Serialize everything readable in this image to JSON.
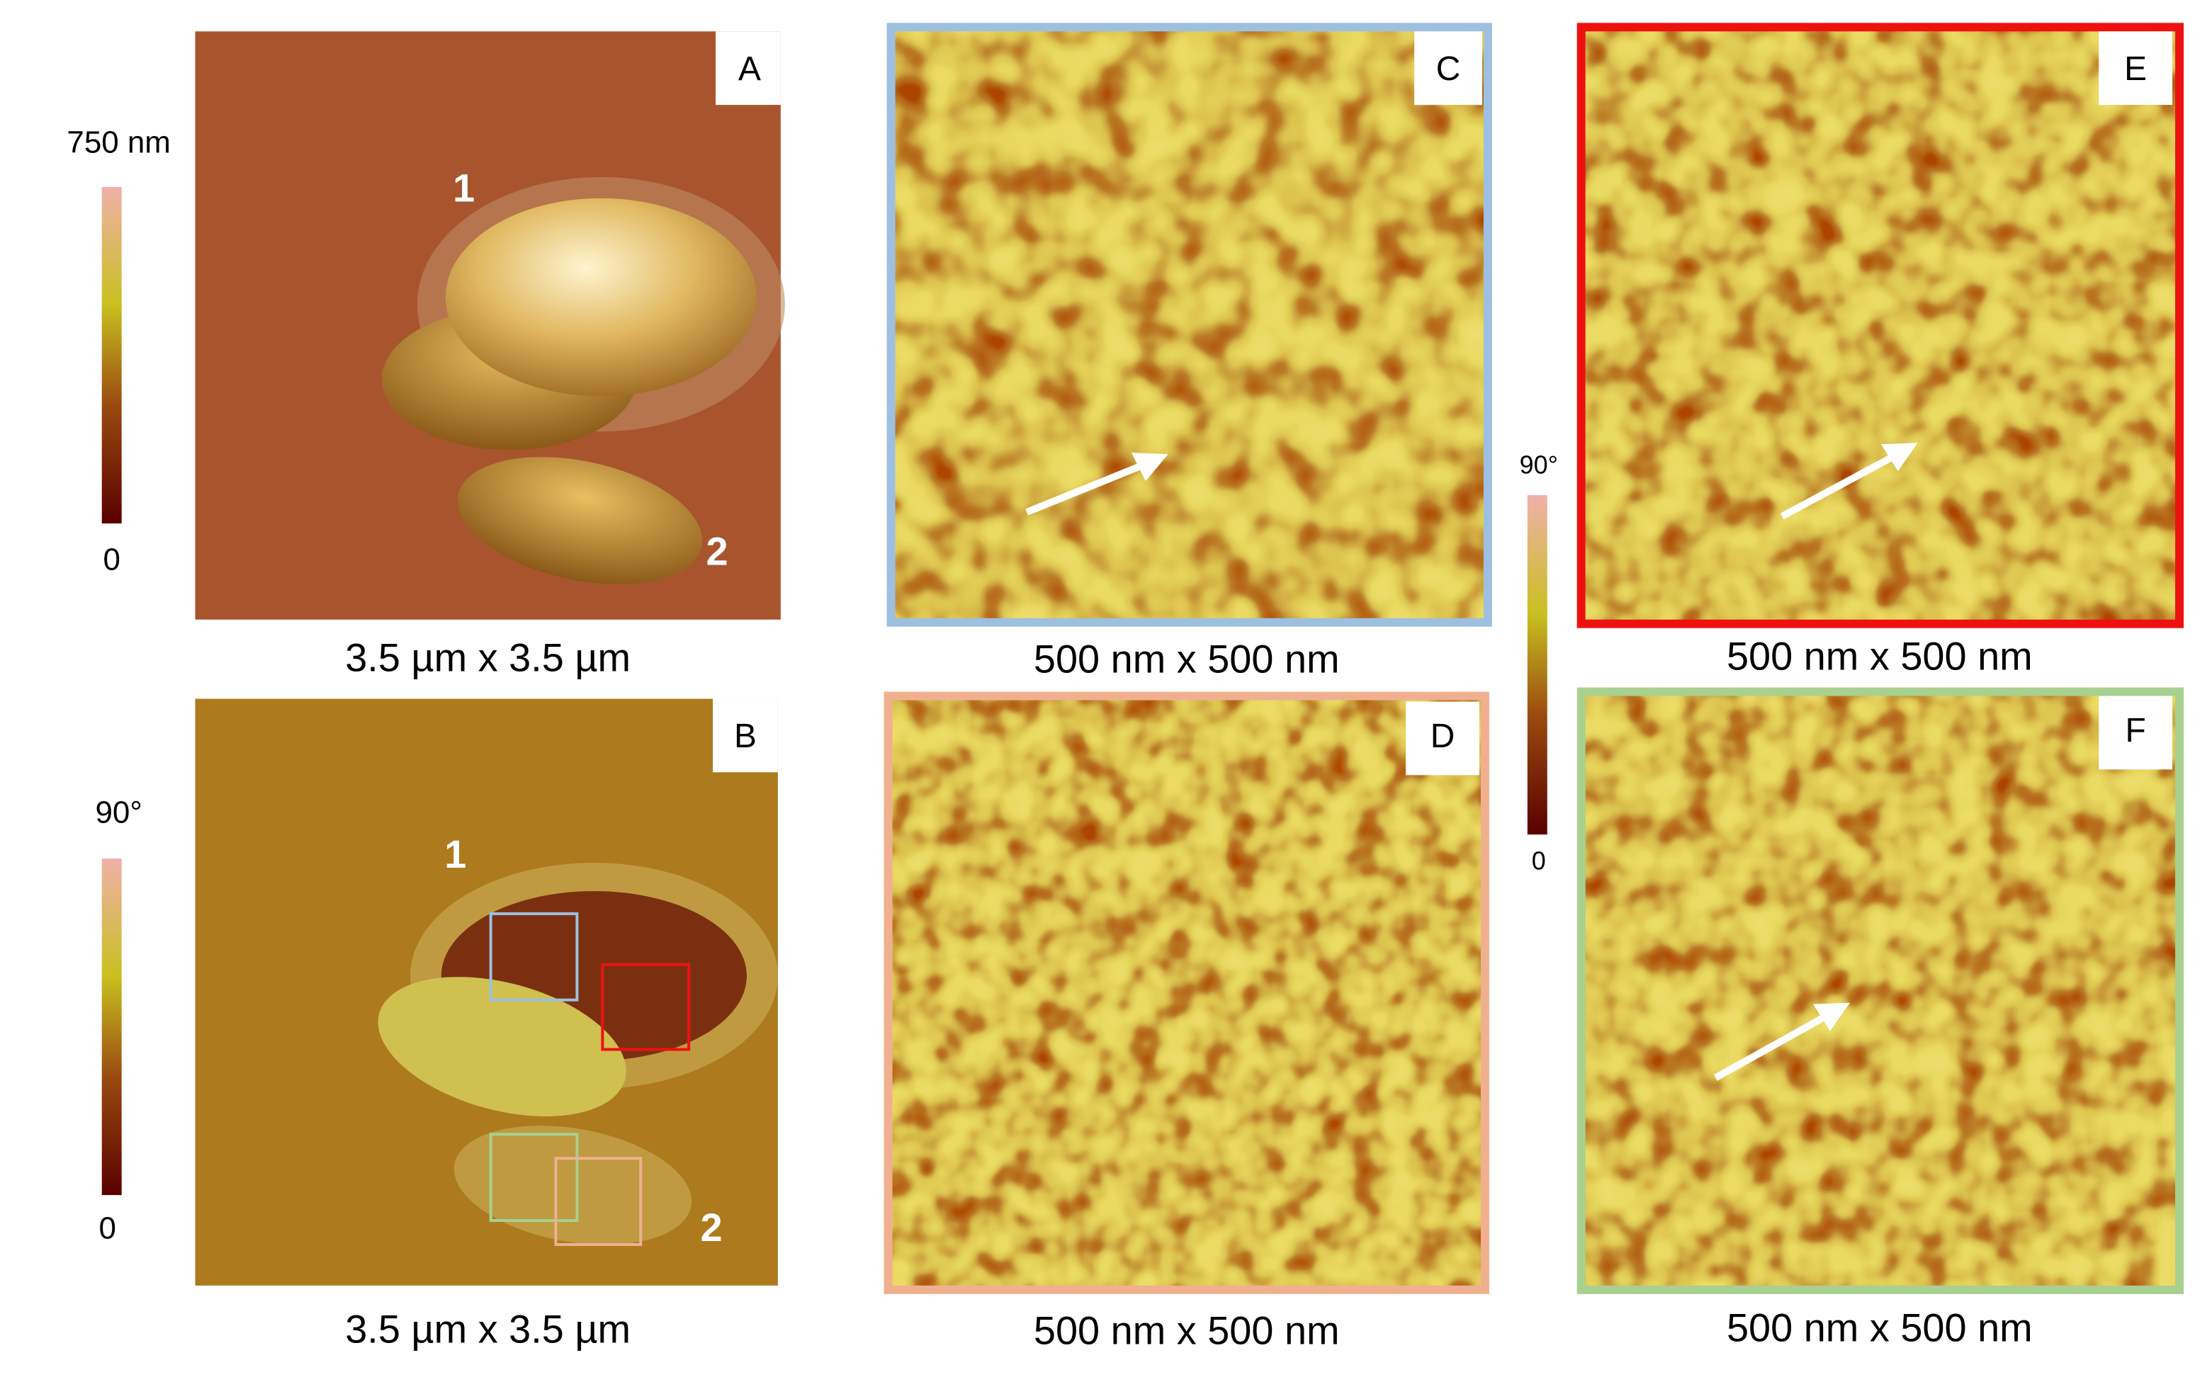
{
  "colorbars": [
    {
      "max": "750 nm",
      "min": "0"
    },
    {
      "max": "90°",
      "min": "0"
    },
    {
      "max": "90°",
      "min": "0"
    }
  ],
  "panels": [
    {
      "label": "A",
      "scale": "3.5 µm x 3.5 µm",
      "markers": [
        "1",
        "2"
      ]
    },
    {
      "label": "B",
      "scale": "3.5 µm x 3.5 µm",
      "markers": [
        "1",
        "2"
      ]
    },
    {
      "label": "C",
      "scale": "500 nm x 500 nm"
    },
    {
      "label": "D",
      "scale": "500 nm x 500 nm"
    },
    {
      "label": "E",
      "scale": "500 nm x 500 nm"
    },
    {
      "label": "F",
      "scale": "500 nm x 500 nm"
    }
  ]
}
